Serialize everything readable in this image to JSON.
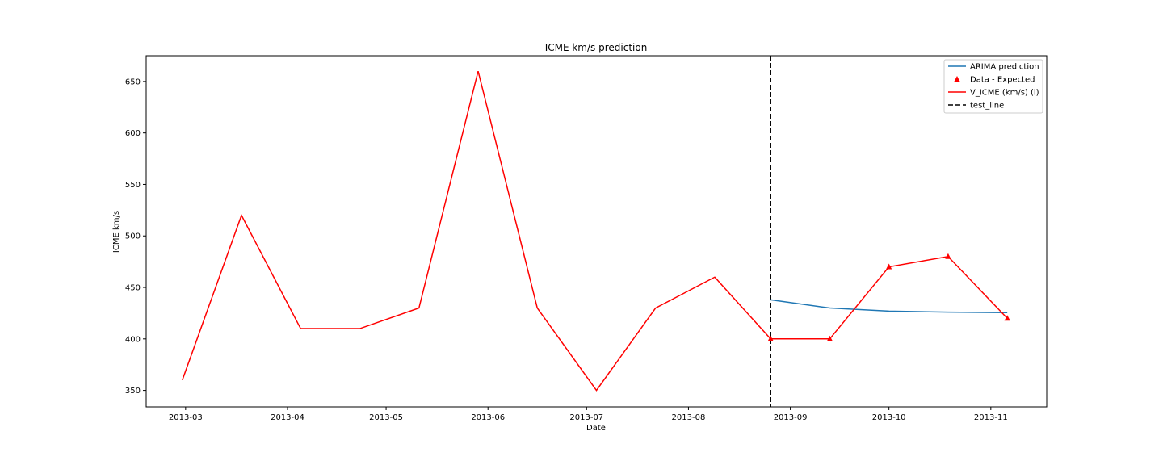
{
  "chart_data": {
    "type": "line",
    "title": "ICME km/s prediction",
    "xlabel": "Date",
    "ylabel": "ICME km/s",
    "xlim": [
      "2013-02-17",
      "2013-11-18"
    ],
    "ylim": [
      334,
      675
    ],
    "x_ticks": [
      "2013-03",
      "2013-04",
      "2013-05",
      "2013-06",
      "2013-07",
      "2013-08",
      "2013-09",
      "2013-10",
      "2013-11"
    ],
    "y_ticks": [
      350,
      400,
      450,
      500,
      550,
      600,
      650
    ],
    "grid": false,
    "legend_position": "top-right",
    "series": [
      {
        "name": "ARIMA prediction",
        "kind": "line",
        "color": "#1f77b4",
        "x": [
          "2013-08-26",
          "2013-09-13",
          "2013-10-01",
          "2013-10-19",
          "2013-11-06"
        ],
        "y": [
          438,
          430,
          427,
          426,
          425.5
        ]
      },
      {
        "name": "Data - Expected",
        "kind": "scatter",
        "marker": "triangle-up",
        "color": "#ff0000",
        "x": [
          "2013-08-26",
          "2013-09-13",
          "2013-10-01",
          "2013-10-19",
          "2013-11-06"
        ],
        "y": [
          400,
          400,
          470,
          480,
          420
        ]
      },
      {
        "name": "V_ICME (km/s) (i)",
        "kind": "line",
        "color": "#ff0000",
        "x": [
          "2013-02-28",
          "2013-03-18",
          "2013-04-05",
          "2013-04-23",
          "2013-05-11",
          "2013-05-29",
          "2013-06-16",
          "2013-07-04",
          "2013-07-22",
          "2013-08-09",
          "2013-08-26",
          "2013-09-13",
          "2013-10-01",
          "2013-10-19",
          "2013-11-06"
        ],
        "y": [
          360,
          520,
          410,
          410,
          430,
          660,
          430,
          350,
          430,
          460,
          400,
          400,
          470,
          480,
          420
        ]
      },
      {
        "name": "test_line",
        "kind": "vline",
        "style": "dashed",
        "color": "#000000",
        "x": "2013-08-26"
      }
    ]
  }
}
